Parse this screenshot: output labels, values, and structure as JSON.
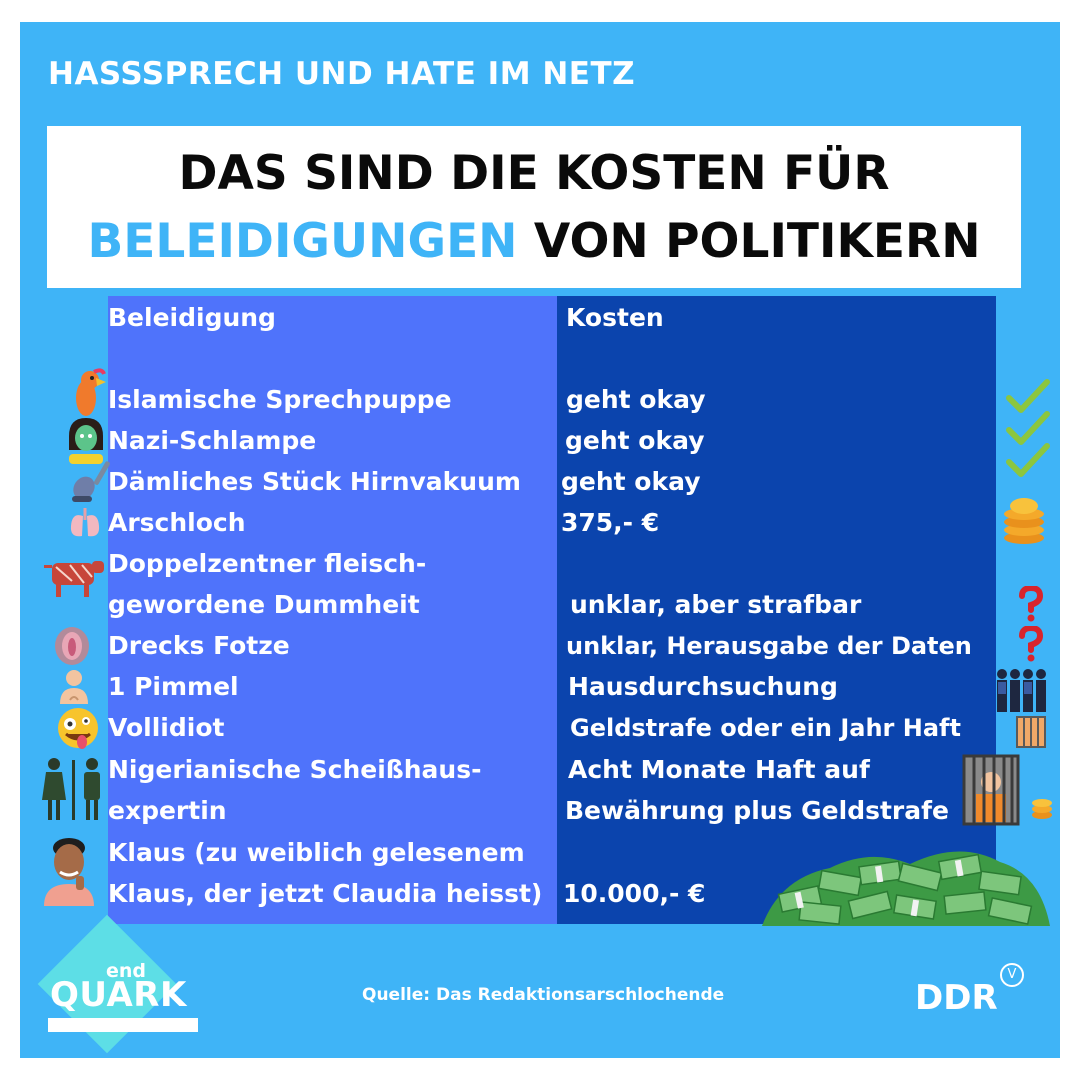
{
  "header": {
    "kicker": "HASSSPRECH UND HATE IM NETZ",
    "title_line1": "DAS SIND DIE KOSTEN FÜR",
    "title_accent": "BELEIDIGUNGEN",
    "title_rest": " VON POLITIKERN"
  },
  "table": {
    "col1_header": "Beleidigung",
    "col2_header": "Kosten",
    "rows": [
      {
        "insult": "Islamische Sprechpuppe",
        "cost": "geht okay"
      },
      {
        "insult": "Nazi-Schlampe",
        "cost": "geht okay"
      },
      {
        "insult": "Dämliches Stück Hirnvakuum",
        "cost": "geht okay"
      },
      {
        "insult": "Arschloch",
        "cost": "375,- €"
      },
      {
        "insult": "Doppelzentner fleisch-",
        "cost": ""
      },
      {
        "insult": "gewordene Dummheit",
        "cost": "unklar, aber strafbar"
      },
      {
        "insult": "Drecks Fotze",
        "cost": "unklar, Herausgabe der Daten"
      },
      {
        "insult": "1 Pimmel",
        "cost": "Hausdurchsuchung"
      },
      {
        "insult": "Vollidiot",
        "cost": "Geldstrafe oder ein Jahr Haft"
      },
      {
        "insult": "Nigerianische Scheißhaus-",
        "cost": "Acht Monate Haft auf"
      },
      {
        "insult": "expertin",
        "cost": "Bewährung  plus Geldstrafe"
      },
      {
        "insult": "Klaus (zu weiblich gelesenem",
        "cost": ""
      },
      {
        "insult": "Klaus, der jetzt Claudia heisst)",
        "cost": "10.000,- €"
      }
    ]
  },
  "footer": {
    "source": "Quelle: Das Redaktionsarschlochende",
    "logo_end": "end",
    "logo_quark": "QUARK",
    "brand": "DDR",
    "brand_mark": "V"
  },
  "colors": {
    "background": "#3fb4f7",
    "column_left": "#4f73fb",
    "column_right": "#0b44ad",
    "accent": "#3fb4f7",
    "logo": "#5ddee6"
  },
  "icons": [
    "parrot-icon",
    "face-mask-woman-icon",
    "vacuum-cleaner-icon",
    "lungs-icon",
    "cow-icon",
    "anatomy-icon",
    "man-icon",
    "crazy-face-icon",
    "restroom-icon",
    "person-face-icon",
    "checkmark-icon",
    "coin-stack-icon",
    "question-mark-icon",
    "police-group-icon",
    "jail-icon",
    "cash-pile-icon"
  ]
}
